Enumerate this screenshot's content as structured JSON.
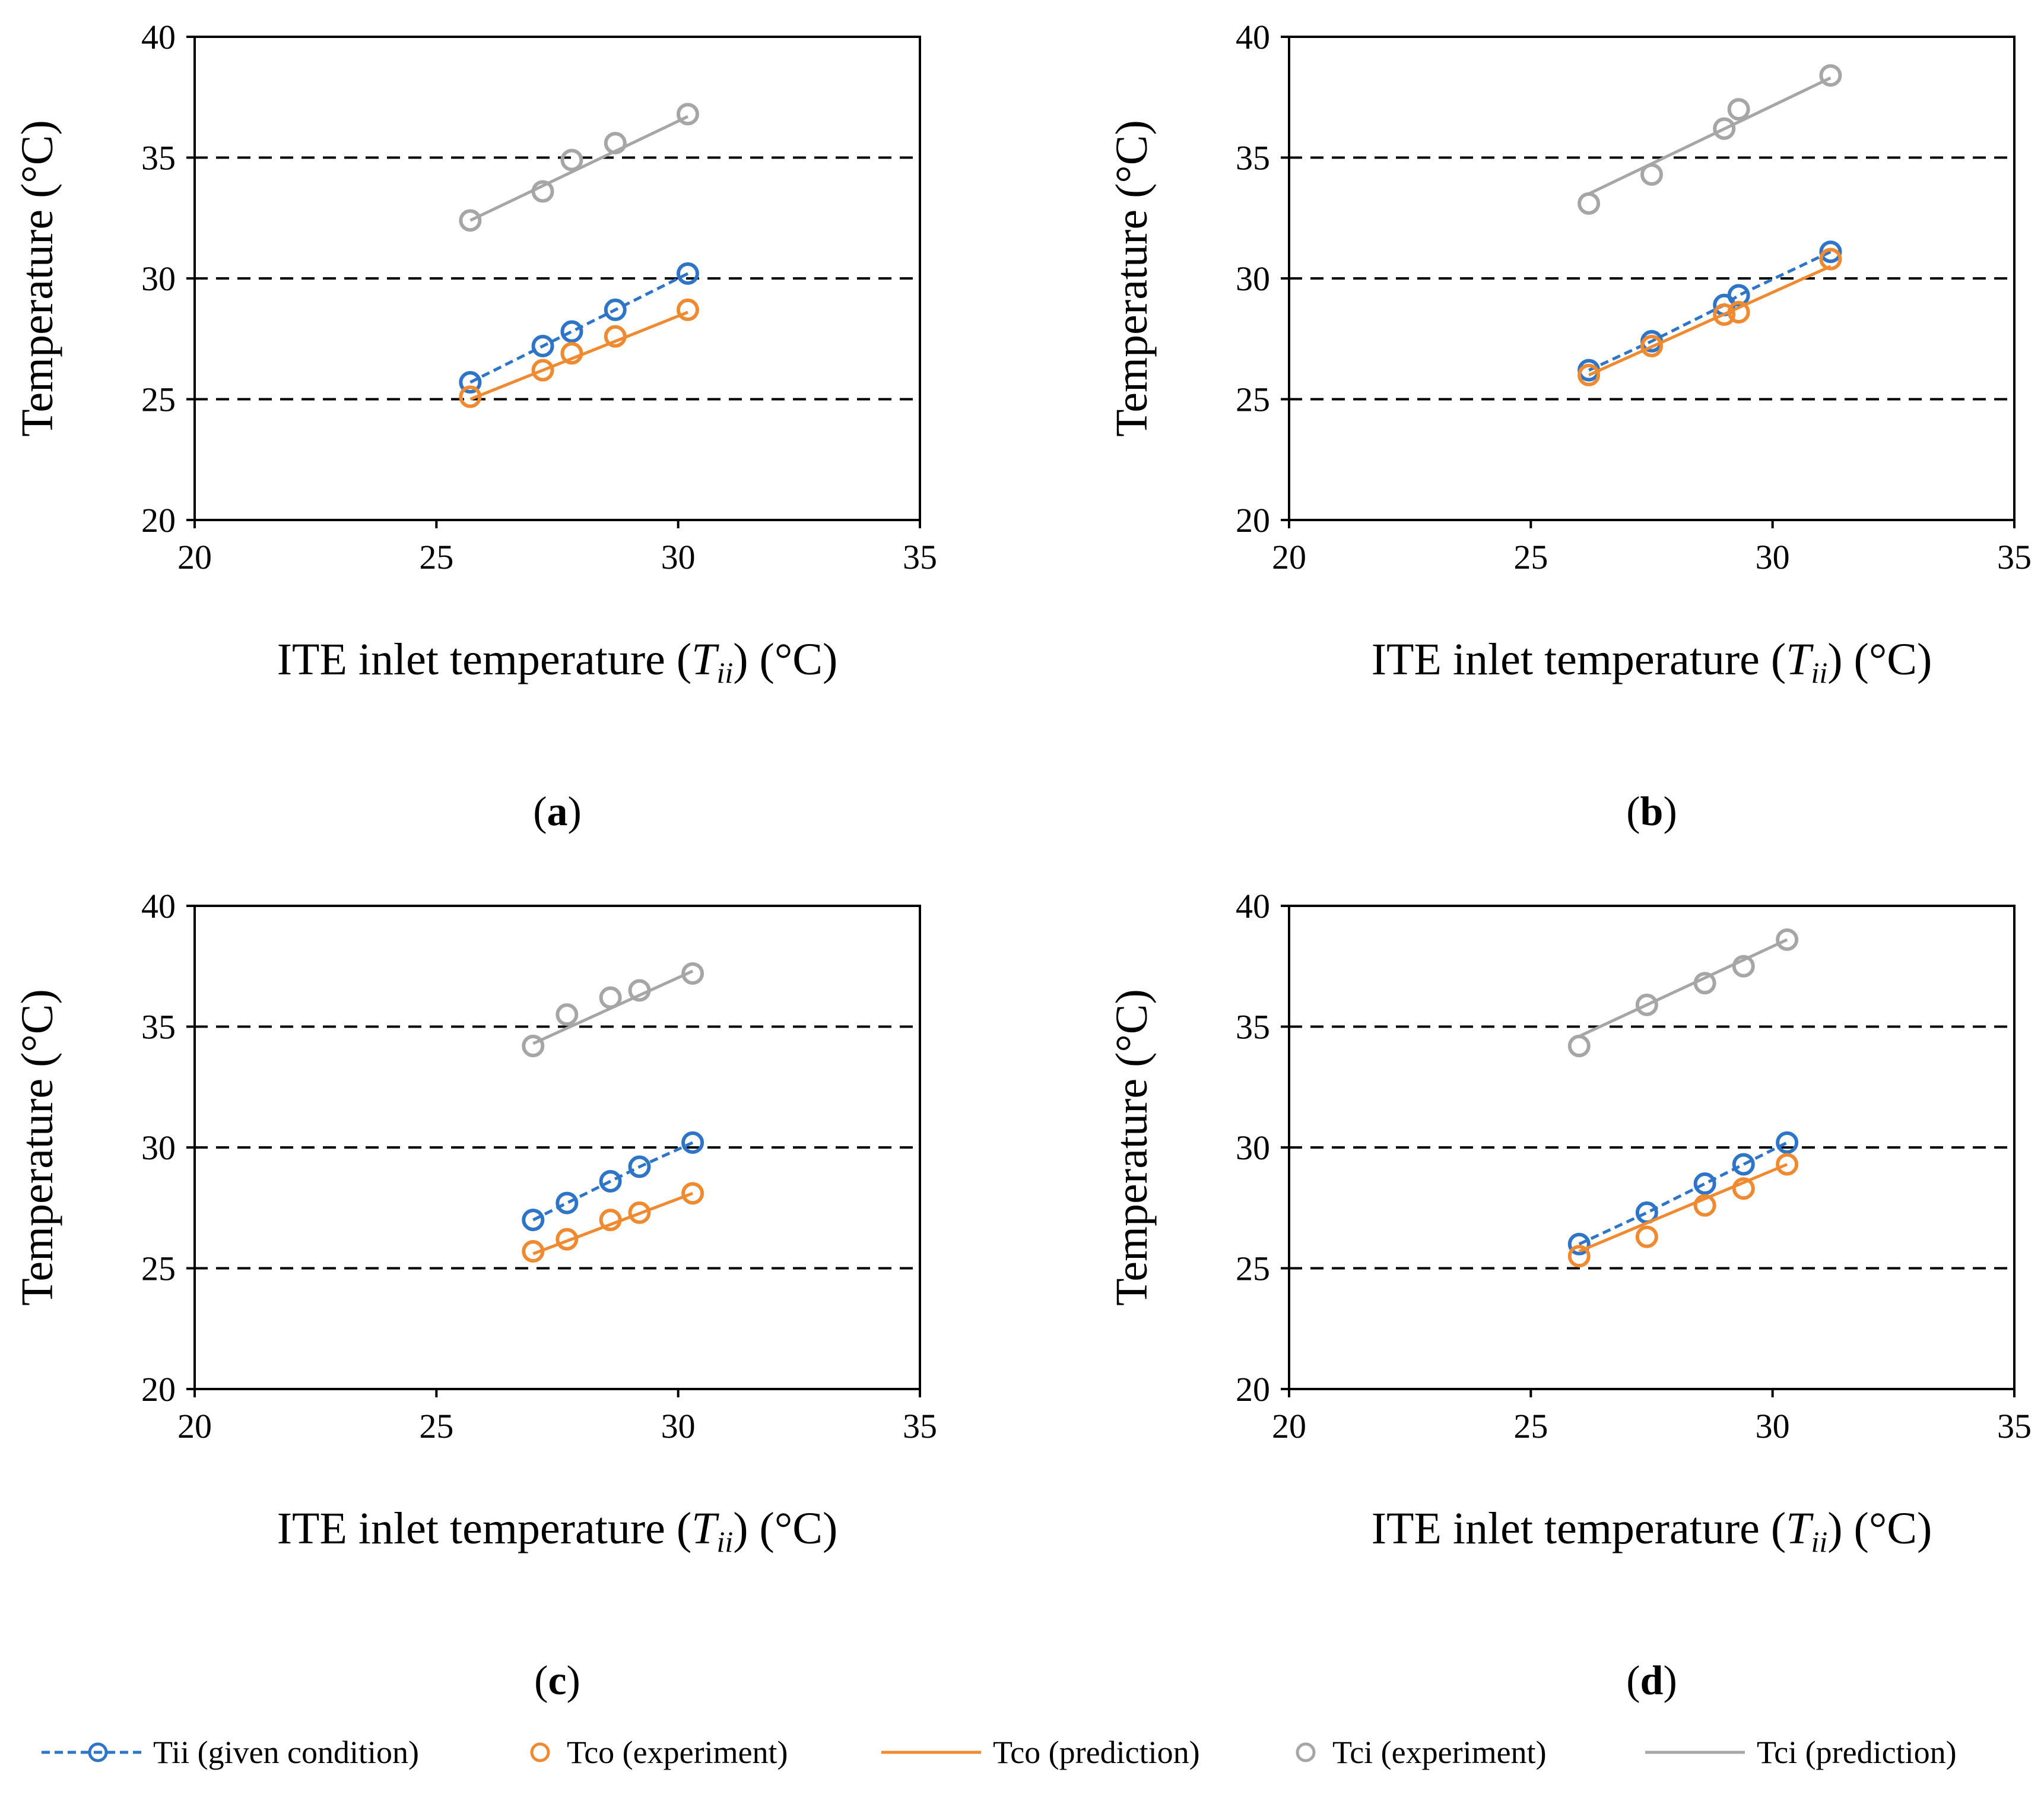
{
  "legend": {
    "tii": "Tii (given condition)",
    "tco_exp": "Tco (experiment)",
    "tco_pred": "Tco (prediction)",
    "tci_exp": "Tci (experiment)",
    "tci_pred": "Tci (prediction)"
  },
  "colors": {
    "tii": "#2E75C8",
    "tco": "#F08A30",
    "tci": "#A6A6A6",
    "grid": "#000000"
  },
  "chart_data": [
    {
      "type": "line",
      "panel": "(a)",
      "panel_letter": "a",
      "xlabel": "ITE inlet temperature (Tii) (°C)",
      "ylabel": "Temperature (°C)",
      "xlim": [
        20,
        35
      ],
      "ylim": [
        20,
        40
      ],
      "xticks": [
        20,
        25,
        30,
        35
      ],
      "yticks": [
        20,
        25,
        30,
        35,
        40
      ],
      "gridlines_y": [
        25,
        30,
        35
      ],
      "series": [
        {
          "name": "Tii (given condition)",
          "x": [
            25.7,
            27.2,
            27.8,
            28.7,
            30.2
          ],
          "y": [
            25.7,
            27.2,
            27.8,
            28.7,
            30.2
          ]
        },
        {
          "name": "Tco (experiment)",
          "x": [
            25.7,
            27.2,
            27.8,
            28.7,
            30.2
          ],
          "y": [
            25.1,
            26.2,
            26.9,
            27.6,
            28.7
          ]
        },
        {
          "name": "Tco (prediction)",
          "x": [
            25.7,
            30.2
          ],
          "y": [
            25.0,
            28.6
          ]
        },
        {
          "name": "Tci (experiment)",
          "x": [
            25.7,
            27.2,
            27.8,
            28.7,
            30.2
          ],
          "y": [
            32.4,
            33.6,
            34.9,
            35.6,
            36.8
          ]
        },
        {
          "name": "Tci (prediction)",
          "x": [
            25.7,
            30.2
          ],
          "y": [
            32.4,
            36.7
          ]
        }
      ]
    },
    {
      "type": "line",
      "panel": "(b)",
      "panel_letter": "b",
      "xlabel": "ITE inlet temperature (Tii) (°C)",
      "ylabel": "Temperature (°C)",
      "xlim": [
        20,
        35
      ],
      "ylim": [
        20,
        40
      ],
      "xticks": [
        20,
        25,
        30,
        35
      ],
      "yticks": [
        20,
        25,
        30,
        35,
        40
      ],
      "gridlines_y": [
        25,
        30,
        35
      ],
      "series": [
        {
          "name": "Tii (given condition)",
          "x": [
            26.2,
            27.5,
            29.0,
            29.3,
            31.2
          ],
          "y": [
            26.2,
            27.4,
            28.9,
            29.3,
            31.1
          ]
        },
        {
          "name": "Tco (experiment)",
          "x": [
            26.2,
            27.5,
            29.0,
            29.3,
            31.2
          ],
          "y": [
            26.0,
            27.2,
            28.5,
            28.6,
            30.8
          ]
        },
        {
          "name": "Tco (prediction)",
          "x": [
            26.2,
            31.2
          ],
          "y": [
            26.0,
            30.5
          ]
        },
        {
          "name": "Tci (experiment)",
          "x": [
            26.2,
            27.5,
            29.0,
            29.3,
            31.2
          ],
          "y": [
            33.1,
            34.3,
            36.2,
            37.0,
            38.4
          ]
        },
        {
          "name": "Tci (prediction)",
          "x": [
            26.2,
            31.2
          ],
          "y": [
            33.5,
            38.3
          ]
        }
      ]
    },
    {
      "type": "line",
      "panel": "(c)",
      "panel_letter": "c",
      "xlabel": "ITE inlet temperature (Tii) (°C)",
      "ylabel": "Temperature (°C)",
      "xlim": [
        20,
        35
      ],
      "ylim": [
        20,
        40
      ],
      "xticks": [
        20,
        25,
        30,
        35
      ],
      "yticks": [
        20,
        25,
        30,
        35,
        40
      ],
      "gridlines_y": [
        25,
        30,
        35
      ],
      "series": [
        {
          "name": "Tii (given condition)",
          "x": [
            27.0,
            27.7,
            28.6,
            29.2,
            30.3
          ],
          "y": [
            27.0,
            27.7,
            28.6,
            29.2,
            30.2
          ]
        },
        {
          "name": "Tco (experiment)",
          "x": [
            27.0,
            27.7,
            28.6,
            29.2,
            30.3
          ],
          "y": [
            25.7,
            26.2,
            27.0,
            27.3,
            28.1
          ]
        },
        {
          "name": "Tco (prediction)",
          "x": [
            27.0,
            30.3
          ],
          "y": [
            25.6,
            28.1
          ]
        },
        {
          "name": "Tci (experiment)",
          "x": [
            27.0,
            27.7,
            28.6,
            29.2,
            30.3
          ],
          "y": [
            34.2,
            35.5,
            36.2,
            36.5,
            37.2
          ]
        },
        {
          "name": "Tci (prediction)",
          "x": [
            27.0,
            30.3
          ],
          "y": [
            34.3,
            37.3
          ]
        }
      ]
    },
    {
      "type": "line",
      "panel": "(d)",
      "panel_letter": "d",
      "xlabel": "ITE inlet temperature (Tii) (°C)",
      "ylabel": "Temperature (°C)",
      "xlim": [
        20,
        35
      ],
      "ylim": [
        20,
        40
      ],
      "xticks": [
        20,
        25,
        30,
        35
      ],
      "yticks": [
        20,
        25,
        30,
        35,
        40
      ],
      "gridlines_y": [
        25,
        30,
        35
      ],
      "series": [
        {
          "name": "Tii (given condition)",
          "x": [
            26.0,
            27.4,
            28.6,
            29.4,
            30.3
          ],
          "y": [
            26.0,
            27.3,
            28.5,
            29.3,
            30.2
          ]
        },
        {
          "name": "Tco (experiment)",
          "x": [
            26.0,
            27.4,
            28.6,
            29.4,
            30.3
          ],
          "y": [
            25.5,
            26.3,
            27.6,
            28.3,
            29.3
          ]
        },
        {
          "name": "Tco (prediction)",
          "x": [
            26.0,
            30.3
          ],
          "y": [
            25.7,
            29.3
          ]
        },
        {
          "name": "Tci (experiment)",
          "x": [
            26.0,
            27.4,
            28.6,
            29.4,
            30.3
          ],
          "y": [
            34.2,
            35.9,
            36.8,
            37.5,
            38.6
          ]
        },
        {
          "name": "Tci (prediction)",
          "x": [
            26.0,
            30.3
          ],
          "y": [
            34.6,
            38.6
          ]
        }
      ]
    }
  ]
}
